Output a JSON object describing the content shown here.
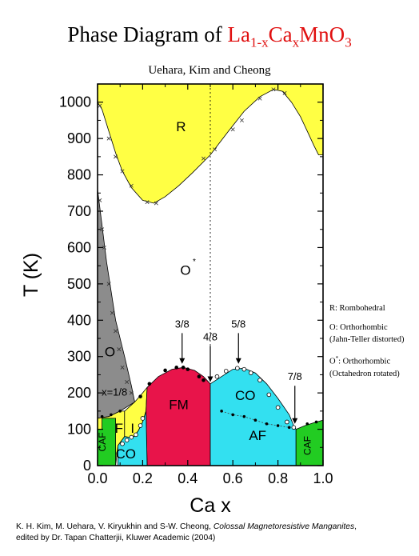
{
  "title": {
    "prefix": "Phase Diagram of ",
    "formula": "La",
    "sub1": "1-x",
    "mid": "Ca",
    "sub2": "x",
    "end": "MnO",
    "sub3": "3"
  },
  "subtitle": "Uehara, Kim and Cheong",
  "legend": {
    "r": "R: Rombohedral",
    "o1": "O: Orthorhombic",
    "o2": "(Jahn-Teller distorted)",
    "os1": "O",
    "os_star": "*",
    "os2": ": Orthorhombic",
    "os3": "(Octahedron rotated)"
  },
  "citation": {
    "part1": "K. H. Kim, M. Uehara, V. Kiryukhin and S-W. Cheong, ",
    "book": "Colossal Magnetoresistive Manganites",
    "part2": ",",
    "line2": "edited by Dr. Tapan Chatterjii, Kluwer Academic (2004)"
  },
  "chart_data": {
    "type": "phase-diagram",
    "xlabel": "Ca x",
    "ylabel": "T (K)",
    "xlim": [
      0,
      1.0
    ],
    "ylim": [
      0,
      1050
    ],
    "xticks": [
      "0.0",
      "0.2",
      "0.4",
      "0.6",
      "0.8",
      "1.0"
    ],
    "yticks": [
      "0",
      "100",
      "200",
      "300",
      "400",
      "500",
      "600",
      "700",
      "800",
      "900",
      "1000"
    ],
    "colors": {
      "R": "#ffff44",
      "O": "#8c8c8c",
      "FM": "#e8144a",
      "CO_AF": "#33e0f0",
      "CAF": "#22cc22",
      "I": "#ffff44",
      "F": "#ffff44",
      "O_star": "#ffffff"
    },
    "regions": [
      {
        "name": "R",
        "poly": [
          [
            0,
            1050
          ],
          [
            0,
            1000
          ],
          [
            0.02,
            980
          ],
          [
            0.05,
            920
          ],
          [
            0.08,
            860
          ],
          [
            0.11,
            810
          ],
          [
            0.15,
            765
          ],
          [
            0.2,
            730
          ],
          [
            0.25,
            722
          ],
          [
            0.3,
            740
          ],
          [
            0.36,
            770
          ],
          [
            0.42,
            805
          ],
          [
            0.5,
            855
          ],
          [
            0.58,
            920
          ],
          [
            0.65,
            975
          ],
          [
            0.72,
            1015
          ],
          [
            0.78,
            1035
          ],
          [
            0.82,
            1030
          ],
          [
            0.86,
            1000
          ],
          [
            0.9,
            960
          ],
          [
            0.93,
            920
          ],
          [
            0.96,
            880
          ],
          [
            0.98,
            855
          ],
          [
            1.0,
            855
          ],
          [
            1.0,
            1050
          ]
        ]
      },
      {
        "name": "O",
        "poly": [
          [
            0,
            760
          ],
          [
            0.04,
            560
          ],
          [
            0.08,
            400
          ],
          [
            0.12,
            300
          ],
          [
            0.15,
            220
          ],
          [
            0.165,
            175
          ],
          [
            0.1,
            150
          ],
          [
            0.05,
            135
          ],
          [
            0,
            130
          ]
        ]
      },
      {
        "name": "F",
        "poly": [
          [
            0,
            130
          ],
          [
            0.05,
            135
          ],
          [
            0.1,
            150
          ],
          [
            0.12,
            150
          ],
          [
            0.12,
            80
          ],
          [
            0.09,
            55
          ],
          [
            0.08,
            0
          ],
          [
            0.02,
            0
          ],
          [
            0.02,
            100
          ],
          [
            0,
            100
          ]
        ]
      },
      {
        "name": "I",
        "poly": [
          [
            0.12,
            150
          ],
          [
            0.165,
            175
          ],
          [
            0.2,
            200
          ],
          [
            0.22,
            215
          ],
          [
            0.215,
            150
          ],
          [
            0.2,
            120
          ],
          [
            0.18,
            95
          ],
          [
            0.16,
            80
          ],
          [
            0.14,
            78
          ],
          [
            0.12,
            80
          ]
        ]
      },
      {
        "name": "FM",
        "poly": [
          [
            0.22,
            0
          ],
          [
            0.215,
            150
          ],
          [
            0.22,
            215
          ],
          [
            0.27,
            245
          ],
          [
            0.33,
            265
          ],
          [
            0.38,
            270
          ],
          [
            0.43,
            262
          ],
          [
            0.47,
            245
          ],
          [
            0.5,
            225
          ],
          [
            0.5,
            0
          ]
        ]
      },
      {
        "name": "CO_AF",
        "poly": [
          [
            0.5,
            0
          ],
          [
            0.5,
            225
          ],
          [
            0.55,
            245
          ],
          [
            0.6,
            265
          ],
          [
            0.65,
            268
          ],
          [
            0.7,
            255
          ],
          [
            0.75,
            225
          ],
          [
            0.8,
            185
          ],
          [
            0.85,
            140
          ],
          [
            0.87,
            110
          ],
          [
            0.88,
            100
          ],
          [
            0.88,
            0
          ]
        ]
      },
      {
        "name": "CO_low",
        "poly": [
          [
            0.09,
            0
          ],
          [
            0.09,
            55
          ],
          [
            0.12,
            80
          ],
          [
            0.14,
            78
          ],
          [
            0.16,
            80
          ],
          [
            0.18,
            95
          ],
          [
            0.2,
            120
          ],
          [
            0.215,
            150
          ],
          [
            0.22,
            0
          ]
        ]
      },
      {
        "name": "CAF_left",
        "poly": [
          [
            0,
            0
          ],
          [
            0,
            100
          ],
          [
            0.02,
            100
          ],
          [
            0.02,
            130
          ],
          [
            0.08,
            130
          ],
          [
            0.08,
            0
          ]
        ]
      },
      {
        "name": "CAF_right",
        "poly": [
          [
            0.88,
            0
          ],
          [
            0.88,
            100
          ],
          [
            0.92,
            110
          ],
          [
            0.96,
            118
          ],
          [
            1.0,
            125
          ],
          [
            1.0,
            0
          ]
        ]
      }
    ],
    "region_labels": [
      {
        "text": "R",
        "x": 0.37,
        "y": 930
      },
      {
        "text": "O",
        "x": 0.39,
        "y": 535,
        "star": true
      },
      {
        "text": "O",
        "x": 0.055,
        "y": 310
      },
      {
        "text": "x=1/8",
        "x": 0.075,
        "y": 200
      },
      {
        "text": "FM",
        "x": 0.36,
        "y": 165
      },
      {
        "text": "CO",
        "x": 0.655,
        "y": 190
      },
      {
        "text": "AF",
        "x": 0.71,
        "y": 80
      },
      {
        "text": "CO",
        "x": 0.125,
        "y": 30
      },
      {
        "text": "F",
        "x": 0.095,
        "y": 100
      },
      {
        "text": "I",
        "x": 0.155,
        "y": 100
      },
      {
        "text": "CAF",
        "x": 0.035,
        "y": 65,
        "vertical": true
      },
      {
        "text": "CAF",
        "x": 0.945,
        "y": 55,
        "vertical": true
      }
    ],
    "arrows": [
      {
        "text": "3/8",
        "x": 0.375,
        "y_text": 380,
        "y_tip": 280
      },
      {
        "text": "4/8",
        "x": 0.5,
        "y_text": 345,
        "y_tip": 230
      },
      {
        "text": "5/8",
        "x": 0.625,
        "y_text": 380,
        "y_tip": 280
      },
      {
        "text": "7/8",
        "x": 0.875,
        "y_text": 235,
        "y_tip": 115
      }
    ],
    "dotted_boundary_x": 0.5,
    "r_data_points": [
      [
        0.01,
        990
      ],
      [
        0.05,
        900
      ],
      [
        0.08,
        850
      ],
      [
        0.11,
        810
      ],
      [
        0.15,
        770
      ],
      [
        0.22,
        725
      ],
      [
        0.26,
        722
      ],
      [
        0.47,
        845
      ],
      [
        0.52,
        870
      ],
      [
        0.6,
        925
      ],
      [
        0.64,
        950
      ],
      [
        0.72,
        1010
      ],
      [
        0.78,
        1035
      ],
      [
        0.83,
        1025
      ]
    ],
    "o_data_points": [
      [
        0.01,
        730
      ],
      [
        0.02,
        650
      ],
      [
        0.03,
        600
      ],
      [
        0.05,
        500
      ],
      [
        0.065,
        420
      ],
      [
        0.08,
        370
      ],
      [
        0.095,
        320
      ],
      [
        0.11,
        270
      ],
      [
        0.13,
        230
      ],
      [
        0.15,
        200
      ]
    ],
    "fm_data_points": [
      [
        0.19,
        190
      ],
      [
        0.23,
        225
      ],
      [
        0.3,
        262
      ],
      [
        0.35,
        270
      ],
      [
        0.38,
        270
      ],
      [
        0.4,
        265
      ],
      [
        0.45,
        245
      ],
      [
        0.47,
        235
      ]
    ],
    "co_data_points": [
      [
        0.53,
        245
      ],
      [
        0.57,
        260
      ],
      [
        0.62,
        268
      ],
      [
        0.65,
        265
      ],
      [
        0.68,
        255
      ],
      [
        0.72,
        235
      ],
      [
        0.76,
        195
      ],
      [
        0.8,
        160
      ],
      [
        0.84,
        120
      ],
      [
        0.87,
        105
      ]
    ],
    "af_data_points": [
      [
        0.55,
        150
      ],
      [
        0.6,
        140
      ],
      [
        0.65,
        135
      ],
      [
        0.7,
        125
      ],
      [
        0.75,
        115
      ],
      [
        0.8,
        110
      ],
      [
        0.85,
        105
      ]
    ],
    "co_low_points": [
      [
        0.11,
        60
      ],
      [
        0.13,
        70
      ],
      [
        0.15,
        78
      ],
      [
        0.17,
        85
      ],
      [
        0.19,
        110
      ],
      [
        0.2,
        130
      ]
    ],
    "caf_points": [
      [
        0.02,
        135
      ],
      [
        0.06,
        140
      ],
      [
        0.1,
        150
      ],
      [
        0.93,
        115
      ],
      [
        0.97,
        120
      ]
    ]
  }
}
